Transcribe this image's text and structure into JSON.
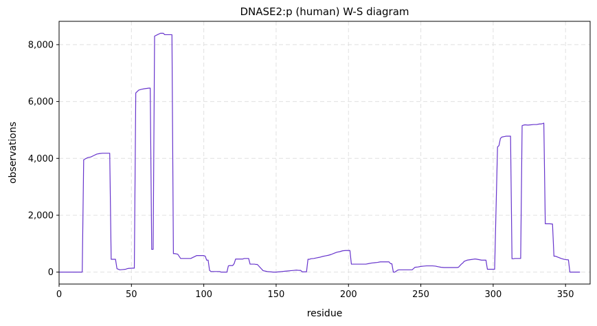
{
  "chart_data": {
    "type": "line",
    "title": "DNASE2:p (human) W-S diagram",
    "xlabel": "residue",
    "ylabel": "observations",
    "xlim": [
      0,
      367
    ],
    "ylim": [
      -420,
      8820
    ],
    "xticks": [
      0,
      50,
      100,
      150,
      200,
      250,
      300,
      350
    ],
    "yticks": [
      0,
      2000,
      4000,
      6000,
      8000
    ],
    "ytick_labels": [
      "0",
      "2,000",
      "4,000",
      "6,000",
      "8,000"
    ],
    "grid": true,
    "line_color": "#6633cc",
    "series": [
      {
        "name": "",
        "x": [
          0,
          16,
          17,
          18,
          20,
          22,
          24,
          26,
          28,
          30,
          34,
          35,
          36,
          38,
          39,
          40,
          42,
          44,
          46,
          47,
          48,
          51,
          52,
          53,
          55,
          57,
          59,
          62,
          63,
          64,
          65,
          66,
          68,
          70,
          72,
          73,
          77,
          78,
          79,
          80,
          82,
          84,
          89,
          90,
          91,
          95,
          100,
          101,
          102,
          103,
          104,
          105,
          106,
          110,
          111,
          112,
          115,
          116,
          117,
          118,
          120,
          121,
          122,
          126,
          127,
          128,
          131,
          132,
          135,
          136,
          137,
          141,
          142,
          144,
          146,
          148,
          150,
          152,
          154,
          156,
          158,
          160,
          162,
          164,
          166,
          167,
          168,
          170,
          171,
          172,
          173,
          174,
          176,
          178,
          180,
          182,
          184,
          186,
          188,
          190,
          192,
          194,
          196,
          198,
          200,
          201,
          202,
          210,
          212,
          214,
          216,
          218,
          220,
          222,
          228,
          229,
          230,
          231,
          232,
          234,
          235,
          236,
          240,
          242,
          244,
          246,
          248,
          250,
          252,
          254,
          256,
          258,
          260,
          262,
          264,
          266,
          272,
          275,
          276,
          278,
          279,
          280,
          282,
          286,
          287,
          288,
          292,
          293,
          294,
          295,
          296,
          298,
          300,
          301,
          303,
          304,
          305,
          306,
          308,
          309,
          310,
          312,
          313,
          314,
          315,
          319,
          320,
          321,
          322,
          324,
          326,
          328,
          330,
          332,
          333,
          334,
          335,
          336,
          338,
          339,
          341,
          342,
          343,
          345,
          347,
          349,
          350,
          352,
          353,
          354,
          360
        ],
        "values": [
          0,
          0,
          3950,
          3980,
          4030,
          4050,
          4100,
          4150,
          4170,
          4180,
          4180,
          4180,
          450,
          450,
          450,
          120,
          80,
          90,
          100,
          120,
          130,
          140,
          140,
          6300,
          6400,
          6430,
          6450,
          6470,
          6470,
          800,
          800,
          8300,
          8350,
          8400,
          8400,
          8350,
          8350,
          8350,
          650,
          650,
          630,
          480,
          480,
          480,
          480,
          580,
          580,
          560,
          420,
          420,
          60,
          20,
          20,
          20,
          20,
          0,
          0,
          0,
          220,
          230,
          230,
          300,
          460,
          460,
          460,
          480,
          480,
          280,
          280,
          270,
          270,
          50,
          40,
          20,
          10,
          0,
          0,
          10,
          20,
          30,
          40,
          50,
          60,
          70,
          60,
          60,
          10,
          10,
          10,
          450,
          450,
          470,
          480,
          500,
          520,
          550,
          570,
          590,
          620,
          660,
          700,
          720,
          750,
          760,
          760,
          760,
          280,
          280,
          280,
          300,
          320,
          330,
          340,
          360,
          360,
          300,
          290,
          0,
          0,
          70,
          80,
          80,
          80,
          80,
          80,
          170,
          180,
          200,
          210,
          220,
          220,
          220,
          210,
          190,
          170,
          160,
          160,
          160,
          170,
          280,
          320,
          380,
          420,
          450,
          460,
          460,
          420,
          420,
          420,
          420,
          100,
          100,
          100,
          100,
          4400,
          4450,
          4700,
          4750,
          4770,
          4780,
          4780,
          4780,
          470,
          470,
          480,
          480,
          5150,
          5170,
          5180,
          5170,
          5180,
          5190,
          5190,
          5210,
          5210,
          5220,
          5240,
          1700,
          1700,
          1700,
          1690,
          560,
          560,
          520,
          480,
          450,
          440,
          430,
          0,
          0,
          0
        ]
      }
    ]
  }
}
